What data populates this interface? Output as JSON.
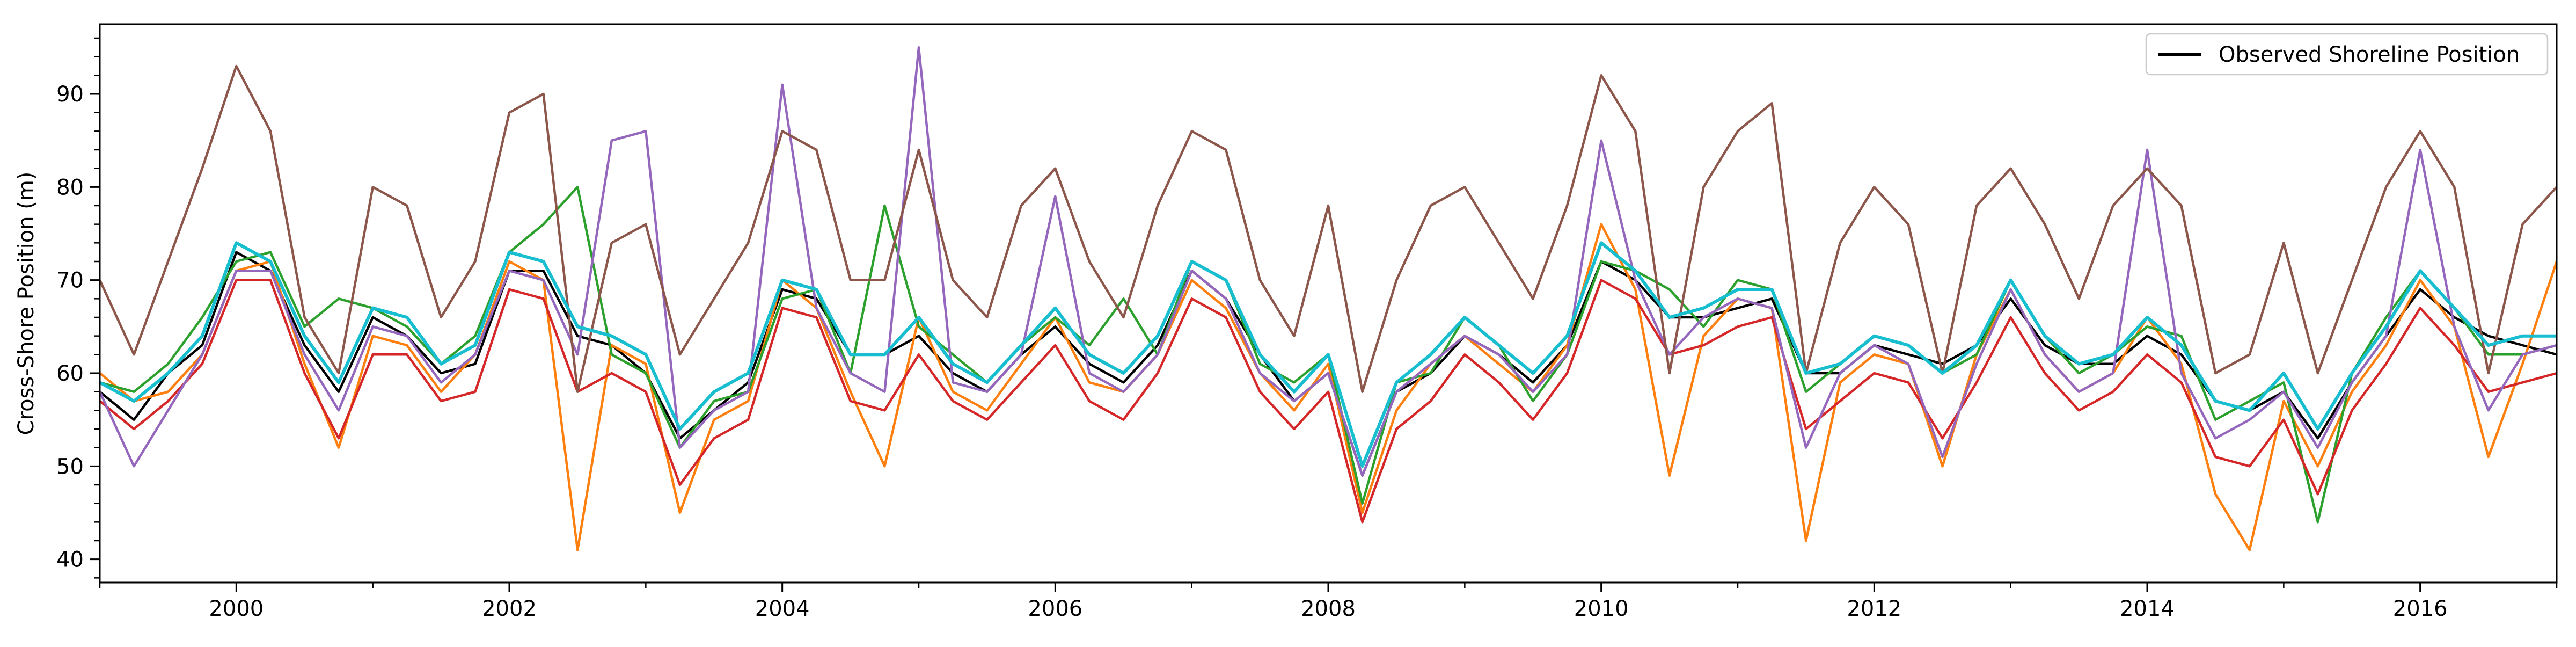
{
  "chart_data": {
    "type": "line",
    "title": "",
    "xlabel": "",
    "ylabel": "Cross-Shore Position (m)",
    "xlim": [
      1999.0,
      2017.0
    ],
    "ylim": [
      37.5,
      97.5
    ],
    "xticks": [
      2000,
      2002,
      2004,
      2006,
      2008,
      2010,
      2012,
      2014,
      2016
    ],
    "xtick_labels": [
      "2000",
      "2002",
      "2004",
      "2006",
      "2008",
      "2010",
      "2012",
      "2014",
      "2016"
    ],
    "yticks": [
      40,
      50,
      60,
      70,
      80,
      90
    ],
    "ytick_labels": [
      "40",
      "50",
      "60",
      "70",
      "80",
      "90"
    ],
    "grid": false,
    "legend": {
      "position": "top-right",
      "entries": [
        "Observed Shoreline Position"
      ]
    },
    "colors": {
      "observed": "#000000",
      "ensemble": [
        "#ff7f0e",
        "#2ca02c",
        "#d62728",
        "#9467bd",
        "#8c564b",
        "#17becf"
      ]
    },
    "series": [
      {
        "name": "Observed Shoreline Position",
        "x": [
          1999.0,
          1999.25,
          1999.5,
          1999.75,
          2000.0,
          2000.25,
          2000.5,
          2000.75,
          2001.0,
          2001.25,
          2001.5,
          2001.75,
          2002.0,
          2002.25,
          2002.5,
          2002.75,
          2003.0,
          2003.25,
          2003.5,
          2003.75,
          2004.0,
          2004.25,
          2004.5,
          2004.75,
          2005.0,
          2005.25,
          2005.5,
          2005.75,
          2006.0,
          2006.25,
          2006.5,
          2006.75,
          2007.0,
          2007.25,
          2007.5,
          2007.75,
          2008.0,
          2008.25,
          2008.5,
          2008.75,
          2009.0,
          2009.25,
          2009.5,
          2009.75,
          2010.0,
          2010.25,
          2010.5,
          2010.75,
          2011.0,
          2011.25,
          2011.5,
          2011.75,
          2012.0,
          2012.25,
          2012.5,
          2012.75,
          2013.0,
          2013.25,
          2013.5,
          2013.75,
          2014.0,
          2014.25,
          2014.5,
          2014.75,
          2015.0,
          2015.25,
          2015.5,
          2015.75,
          2016.0,
          2016.25,
          2016.5,
          2016.75,
          2017.0
        ],
        "y": [
          58,
          55,
          60,
          63,
          73,
          71,
          63,
          58,
          66,
          64,
          60,
          61,
          71,
          71,
          64,
          63,
          60,
          53,
          56,
          59,
          69,
          68,
          62,
          62,
          64,
          60,
          58,
          62,
          65,
          61,
          59,
          63,
          71,
          68,
          62,
          57,
          60,
          49,
          58,
          60,
          64,
          62,
          59,
          63,
          72,
          70,
          66,
          66,
          67,
          68,
          60,
          60,
          63,
          62,
          61,
          63,
          68,
          63,
          61,
          61,
          64,
          62,
          57,
          56,
          58,
          53,
          59,
          64,
          69,
          66,
          64,
          63,
          62
        ]
      },
      {
        "name": "",
        "x": [
          1999.0,
          1999.25,
          1999.5,
          1999.75,
          2000.0,
          2000.25,
          2000.5,
          2000.75,
          2001.0,
          2001.25,
          2001.5,
          2001.75,
          2002.0,
          2002.25,
          2002.5,
          2002.75,
          2003.0,
          2003.25,
          2003.5,
          2003.75,
          2004.0,
          2004.25,
          2004.5,
          2004.75,
          2005.0,
          2005.25,
          2005.5,
          2005.75,
          2006.0,
          2006.25,
          2006.5,
          2006.75,
          2007.0,
          2007.25,
          2007.5,
          2007.75,
          2008.0,
          2008.25,
          2008.5,
          2008.75,
          2009.0,
          2009.25,
          2009.5,
          2009.75,
          2010.0,
          2010.25,
          2010.5,
          2010.75,
          2011.0,
          2011.25,
          2011.5,
          2011.75,
          2012.0,
          2012.25,
          2012.5,
          2012.75,
          2013.0,
          2013.25,
          2013.5,
          2013.75,
          2014.0,
          2014.25,
          2014.5,
          2014.75,
          2015.0,
          2015.25,
          2015.5,
          2015.75,
          2016.0,
          2016.25,
          2016.5,
          2016.75,
          2017.0
        ],
        "y": [
          60,
          57,
          58,
          62,
          71,
          72,
          61,
          52,
          64,
          63,
          58,
          62,
          72,
          70,
          41,
          63,
          61,
          45,
          55,
          57,
          70,
          67,
          58,
          50,
          66,
          58,
          56,
          61,
          66,
          59,
          58,
          62,
          70,
          67,
          60,
          56,
          61,
          45,
          56,
          61,
          64,
          61,
          58,
          63,
          76,
          69,
          49,
          64,
          68,
          67,
          42,
          59,
          62,
          61,
          50,
          62,
          69,
          62,
          58,
          60,
          66,
          61,
          47,
          41,
          57,
          50,
          58,
          63,
          70,
          65,
          51,
          61,
          72
        ]
      },
      {
        "name": "",
        "x": [
          1999.0,
          1999.25,
          1999.5,
          1999.75,
          2000.0,
          2000.25,
          2000.5,
          2000.75,
          2001.0,
          2001.25,
          2001.5,
          2001.75,
          2002.0,
          2002.25,
          2002.5,
          2002.75,
          2003.0,
          2003.25,
          2003.5,
          2003.75,
          2004.0,
          2004.25,
          2004.5,
          2004.75,
          2005.0,
          2005.25,
          2005.5,
          2005.75,
          2006.0,
          2006.25,
          2006.5,
          2006.75,
          2007.0,
          2007.25,
          2007.5,
          2007.75,
          2008.0,
          2008.25,
          2008.5,
          2008.75,
          2009.0,
          2009.25,
          2009.5,
          2009.75,
          2010.0,
          2010.25,
          2010.5,
          2010.75,
          2011.0,
          2011.25,
          2011.5,
          2011.75,
          2012.0,
          2012.25,
          2012.5,
          2012.75,
          2013.0,
          2013.25,
          2013.5,
          2013.75,
          2014.0,
          2014.25,
          2014.5,
          2014.75,
          2015.0,
          2015.25,
          2015.5,
          2015.75,
          2016.0,
          2016.25,
          2016.5,
          2016.75,
          2017.0
        ],
        "y": [
          59,
          58,
          61,
          66,
          72,
          73,
          65,
          68,
          67,
          65,
          61,
          64,
          73,
          76,
          80,
          62,
          60,
          52,
          57,
          58,
          68,
          69,
          60,
          78,
          65,
          62,
          59,
          63,
          66,
          63,
          68,
          62,
          72,
          70,
          61,
          59,
          62,
          46,
          59,
          60,
          66,
          63,
          57,
          62,
          72,
          71,
          69,
          65,
          70,
          69,
          58,
          61,
          64,
          63,
          60,
          62,
          70,
          64,
          60,
          62,
          65,
          64,
          55,
          57,
          59,
          44,
          60,
          66,
          71,
          67,
          62,
          62,
          63
        ]
      },
      {
        "name": "",
        "x": [
          1999.0,
          1999.25,
          1999.5,
          1999.75,
          2000.0,
          2000.25,
          2000.5,
          2000.75,
          2001.0,
          2001.25,
          2001.5,
          2001.75,
          2002.0,
          2002.25,
          2002.5,
          2002.75,
          2003.0,
          2003.25,
          2003.5,
          2003.75,
          2004.0,
          2004.25,
          2004.5,
          2004.75,
          2005.0,
          2005.25,
          2005.5,
          2005.75,
          2006.0,
          2006.25,
          2006.5,
          2006.75,
          2007.0,
          2007.25,
          2007.5,
          2007.75,
          2008.0,
          2008.25,
          2008.5,
          2008.75,
          2009.0,
          2009.25,
          2009.5,
          2009.75,
          2010.0,
          2010.25,
          2010.5,
          2010.75,
          2011.0,
          2011.25,
          2011.5,
          2011.75,
          2012.0,
          2012.25,
          2012.5,
          2012.75,
          2013.0,
          2013.25,
          2013.5,
          2013.75,
          2014.0,
          2014.25,
          2014.5,
          2014.75,
          2015.0,
          2015.25,
          2015.5,
          2015.75,
          2016.0,
          2016.25,
          2016.5,
          2016.75,
          2017.0
        ],
        "y": [
          57,
          54,
          57,
          61,
          70,
          70,
          60,
          53,
          62,
          62,
          57,
          58,
          69,
          68,
          58,
          60,
          58,
          48,
          53,
          55,
          67,
          66,
          57,
          56,
          62,
          57,
          55,
          59,
          63,
          57,
          55,
          60,
          68,
          66,
          58,
          54,
          58,
          44,
          54,
          57,
          62,
          59,
          55,
          60,
          70,
          68,
          62,
          63,
          65,
          66,
          54,
          57,
          60,
          59,
          53,
          59,
          66,
          60,
          56,
          58,
          62,
          59,
          51,
          50,
          55,
          47,
          56,
          61,
          67,
          63,
          58,
          59,
          60
        ]
      },
      {
        "name": "",
        "x": [
          1999.0,
          1999.25,
          1999.5,
          1999.75,
          2000.0,
          2000.25,
          2000.5,
          2000.75,
          2001.0,
          2001.25,
          2001.5,
          2001.75,
          2002.0,
          2002.25,
          2002.5,
          2002.75,
          2003.0,
          2003.25,
          2003.5,
          2003.75,
          2004.0,
          2004.25,
          2004.5,
          2004.75,
          2005.0,
          2005.25,
          2005.5,
          2005.75,
          2006.0,
          2006.25,
          2006.5,
          2006.75,
          2007.0,
          2007.25,
          2007.5,
          2007.75,
          2008.0,
          2008.25,
          2008.5,
          2008.75,
          2009.0,
          2009.25,
          2009.5,
          2009.75,
          2010.0,
          2010.25,
          2010.5,
          2010.75,
          2011.0,
          2011.25,
          2011.5,
          2011.75,
          2012.0,
          2012.25,
          2012.5,
          2012.75,
          2013.0,
          2013.25,
          2013.5,
          2013.75,
          2014.0,
          2014.25,
          2014.5,
          2014.75,
          2015.0,
          2015.25,
          2015.5,
          2015.75,
          2016.0,
          2016.25,
          2016.5,
          2016.75,
          2017.0
        ],
        "y": [
          58,
          50,
          56,
          62,
          71,
          71,
          62,
          56,
          65,
          64,
          59,
          62,
          71,
          70,
          62,
          85,
          86,
          52,
          56,
          58,
          91,
          67,
          60,
          58,
          95,
          59,
          58,
          62,
          79,
          60,
          58,
          62,
          71,
          68,
          60,
          57,
          60,
          49,
          58,
          61,
          64,
          62,
          58,
          62,
          85,
          70,
          62,
          66,
          68,
          67,
          52,
          60,
          63,
          61,
          51,
          61,
          69,
          62,
          58,
          60,
          84,
          60,
          53,
          55,
          58,
          52,
          59,
          64,
          84,
          65,
          56,
          62,
          63
        ]
      },
      {
        "name": "",
        "x": [
          1999.0,
          1999.25,
          1999.5,
          1999.75,
          2000.0,
          2000.25,
          2000.5,
          2000.75,
          2001.0,
          2001.25,
          2001.5,
          2001.75,
          2002.0,
          2002.25,
          2002.5,
          2002.75,
          2003.0,
          2003.25,
          2003.5,
          2003.75,
          2004.0,
          2004.25,
          2004.5,
          2004.75,
          2005.0,
          2005.25,
          2005.5,
          2005.75,
          2006.0,
          2006.25,
          2006.5,
          2006.75,
          2007.0,
          2007.25,
          2007.5,
          2007.75,
          2008.0,
          2008.25,
          2008.5,
          2008.75,
          2009.0,
          2009.25,
          2009.5,
          2009.75,
          2010.0,
          2010.25,
          2010.5,
          2010.75,
          2011.0,
          2011.25,
          2011.5,
          2011.75,
          2012.0,
          2012.25,
          2012.5,
          2012.75,
          2013.0,
          2013.25,
          2013.5,
          2013.75,
          2014.0,
          2014.25,
          2014.5,
          2014.75,
          2015.0,
          2015.25,
          2015.5,
          2015.75,
          2016.0,
          2016.25,
          2016.5,
          2016.75,
          2017.0
        ],
        "y": [
          70,
          62,
          72,
          82,
          93,
          86,
          66,
          60,
          80,
          78,
          66,
          72,
          88,
          90,
          58,
          74,
          76,
          62,
          68,
          74,
          86,
          84,
          70,
          70,
          84,
          70,
          66,
          78,
          82,
          72,
          66,
          78,
          86,
          84,
          70,
          64,
          78,
          58,
          70,
          78,
          80,
          74,
          68,
          78,
          92,
          86,
          60,
          80,
          86,
          89,
          60,
          74,
          80,
          76,
          60,
          78,
          82,
          76,
          68,
          78,
          82,
          78,
          60,
          62,
          74,
          60,
          70,
          80,
          86,
          80,
          60,
          76,
          80
        ]
      },
      {
        "name": "",
        "x": [
          1999.0,
          1999.25,
          1999.5,
          1999.75,
          2000.0,
          2000.25,
          2000.5,
          2000.75,
          2001.0,
          2001.25,
          2001.5,
          2001.75,
          2002.0,
          2002.25,
          2002.5,
          2002.75,
          2003.0,
          2003.25,
          2003.5,
          2003.75,
          2004.0,
          2004.25,
          2004.5,
          2004.75,
          2005.0,
          2005.25,
          2005.5,
          2005.75,
          2006.0,
          2006.25,
          2006.5,
          2006.75,
          2007.0,
          2007.25,
          2007.5,
          2007.75,
          2008.0,
          2008.25,
          2008.5,
          2008.75,
          2009.0,
          2009.25,
          2009.5,
          2009.75,
          2010.0,
          2010.25,
          2010.5,
          2010.75,
          2011.0,
          2011.25,
          2011.5,
          2011.75,
          2012.0,
          2012.25,
          2012.5,
          2012.75,
          2013.0,
          2013.25,
          2013.5,
          2013.75,
          2014.0,
          2014.25,
          2014.5,
          2014.75,
          2015.0,
          2015.25,
          2015.5,
          2015.75,
          2016.0,
          2016.25,
          2016.5,
          2016.75,
          2017.0
        ],
        "y": [
          59,
          57,
          60,
          64,
          74,
          72,
          64,
          59,
          67,
          66,
          61,
          63,
          73,
          72,
          65,
          64,
          62,
          54,
          58,
          60,
          70,
          69,
          62,
          62,
          66,
          61,
          59,
          63,
          67,
          62,
          60,
          64,
          72,
          70,
          62,
          58,
          62,
          50,
          59,
          62,
          66,
          63,
          60,
          64,
          74,
          71,
          66,
          67,
          69,
          69,
          60,
          61,
          64,
          63,
          60,
          63,
          70,
          64,
          61,
          62,
          66,
          63,
          57,
          56,
          60,
          54,
          60,
          65,
          71,
          67,
          63,
          64,
          64
        ]
      }
    ]
  }
}
